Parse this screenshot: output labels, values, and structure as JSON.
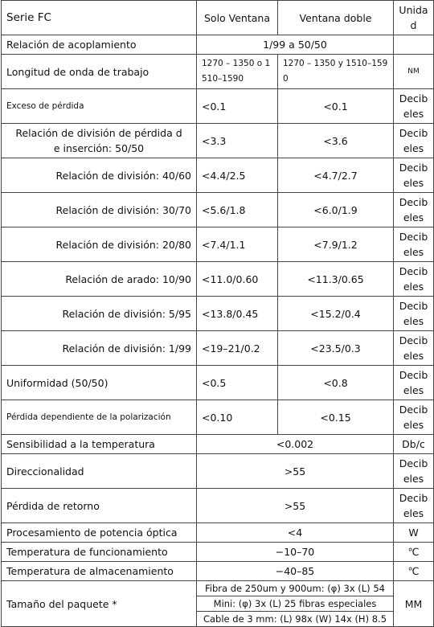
{
  "table": {
    "header": [
      "Serie FC",
      "Solo Ventana",
      "Ventana doble",
      "Unidad"
    ],
    "rows": [
      [
        "Relación de acoplamiento",
        "1/99 a 50/50",
        ""
      ],
      [
        "Longitud de onda de trabajo",
        "1270 – 1350 o 1510–1590",
        "1270 – 1350 y 1510–1590",
        "NM"
      ],
      [
        "Exceso de pérdida",
        "<0.1",
        "<0.1",
        "Decibeles"
      ],
      [
        "Relación de división de pérdida de inserción: 50/50",
        "<3.3",
        "<3.6",
        "Decibeles"
      ],
      [
        "Relación de división: 40/60",
        "<4.4/2.5",
        "<4.7/2.7",
        "Decibeles"
      ],
      [
        "Relación de división: 30/70",
        "<5.6/1.8",
        "<6.0/1.9",
        "Decibeles"
      ],
      [
        "Relación de división: 20/80",
        "<7.4/1.1",
        "<7.9/1.2",
        "Decibeles"
      ],
      [
        "Relación de arado: 10/90",
        "<11.0/0.60",
        "<11.3/0.65",
        "Decibeles"
      ],
      [
        "Relación de división: 5/95",
        "<13.8/0.45",
        "<15.2/0.4",
        "Decibeles"
      ],
      [
        "Relación de división: 1/99",
        "<19–21/0.2",
        "<23.5/0.3",
        "Decibeles"
      ],
      [
        "Uniformidad (50/50)",
        "<0.5",
        "<0.8",
        "Decibeles"
      ],
      [
        "Pérdida dependiente de la polarización",
        "<0.10",
        "<0.15",
        "Decibeles"
      ],
      [
        "Sensibilidad a la temperatura",
        "<0.002",
        "Db/c"
      ],
      [
        "Direccionalidad",
        ">55",
        "Decibeles"
      ],
      [
        "Pérdida de retorno",
        ">55",
        "Decibeles"
      ],
      [
        "Procesamiento de potencia óptica",
        "<4",
        "W"
      ],
      [
        "Temperatura de funcionamiento",
        "−10–70",
        "℃"
      ],
      [
        "Temperatura de almacenamiento",
        "−40–85",
        "℃"
      ],
      [
        "Tamaño del paquete *",
        [
          "Fibra de 250um y 900um: (φ) 3x (L) 54",
          "Mini: (φ) 3x (L) 25 fibras especiales",
          "Cable de 3 mm: (L) 98x (W) 14x (H) 8.5"
        ],
        "MM"
      ]
    ]
  }
}
